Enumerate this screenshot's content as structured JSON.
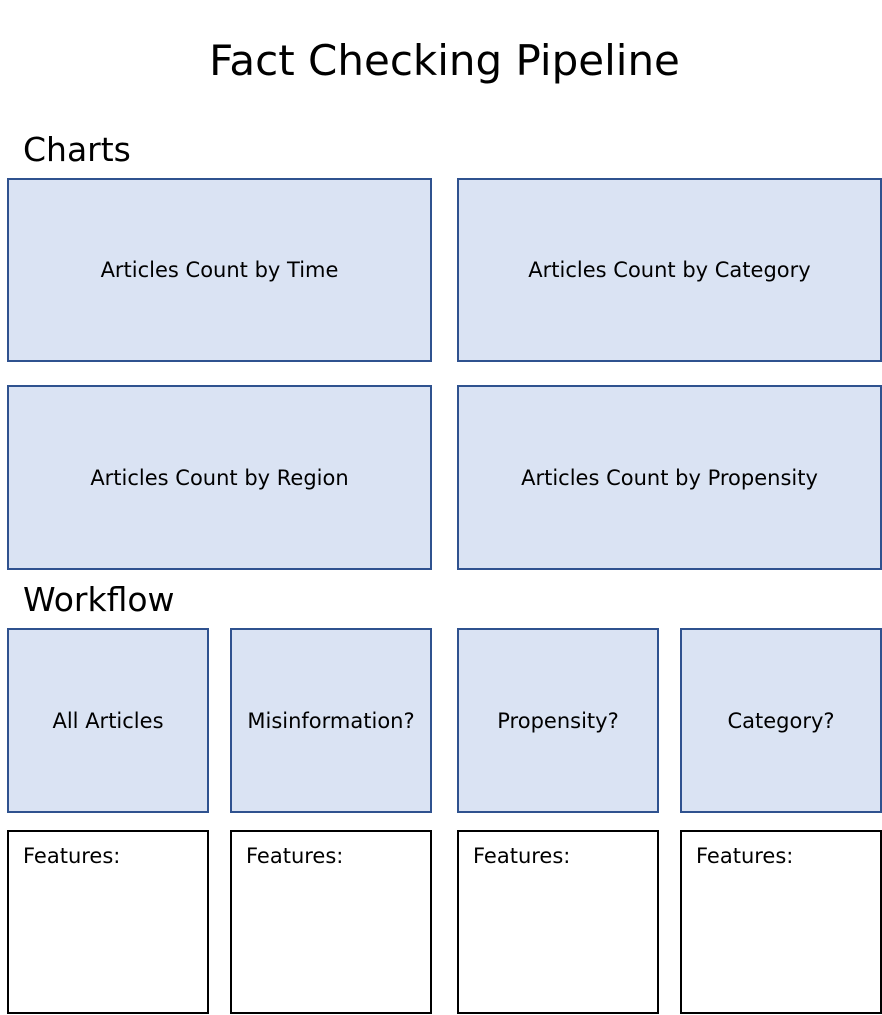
{
  "title": "Fact Checking Pipeline",
  "charts": {
    "heading": "Charts",
    "boxes": [
      "Articles Count by Time",
      "Articles Count by Category",
      "Articles Count by Region",
      "Articles Count by Propensity"
    ]
  },
  "workflow": {
    "heading": "Workflow",
    "steps": [
      "All Articles",
      "Misinformation?",
      "Propensity?",
      "Category?"
    ],
    "features": [
      "Features:",
      "Features:",
      "Features:",
      "Features:"
    ]
  },
  "colors": {
    "box_fill": "#dae3f3",
    "box_border": "#2f528f"
  }
}
